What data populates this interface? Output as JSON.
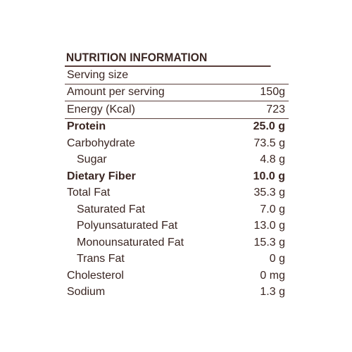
{
  "title": "NUTRITION INFORMATION",
  "rows": [
    {
      "label": "Serving size",
      "value": ""
    },
    {
      "label": "Amount per serving",
      "value": "150g"
    },
    {
      "label": "Energy (Kcal)",
      "value": "723"
    },
    {
      "label": "Protein",
      "value": "25.0 g"
    },
    {
      "label": "Carbohydrate",
      "value": "73.5 g"
    },
    {
      "label": "Sugar",
      "value": "4.8 g"
    },
    {
      "label": "Dietary Fiber",
      "value": "10.0 g"
    },
    {
      "label": "Total Fat",
      "value": "35.3 g"
    },
    {
      "label": "Saturated Fat",
      "value": "7.0 g"
    },
    {
      "label": "Polyunsaturated Fat",
      "value": "13.0 g"
    },
    {
      "label": "Monounsaturated Fat",
      "value": "15.3 g"
    },
    {
      "label": "Trans Fat",
      "value": "0 g"
    },
    {
      "label": "Cholesterol",
      "value": "0 mg"
    },
    {
      "label": "Sodium",
      "value": "1.3 g"
    }
  ],
  "colors": {
    "text": "#3a2622",
    "rule": "#5a3f3b"
  }
}
